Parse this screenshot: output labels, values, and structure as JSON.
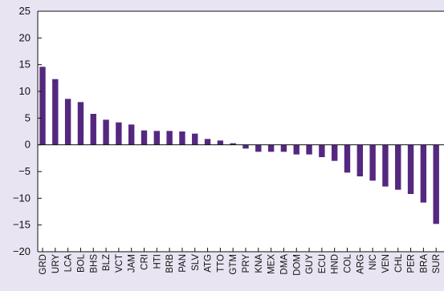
{
  "chart_data": {
    "type": "bar",
    "title": "",
    "xlabel": "",
    "ylabel": "",
    "ylim": [
      -20,
      25
    ],
    "yticks": [
      -20,
      -15,
      -10,
      -5,
      0,
      5,
      10,
      15,
      20,
      25
    ],
    "ytick_labels": [
      "−20",
      "−15",
      "−10",
      "−5",
      "0",
      "5",
      "10",
      "15",
      "20",
      "25"
    ],
    "grid": false,
    "legend": "none",
    "bar_color": "#55287f",
    "background_color": "#e8e4f1",
    "plot_background_color": "#ffffff",
    "categories": [
      "GRD",
      "URY",
      "LCA",
      "BOL",
      "BHS",
      "BLZ",
      "VCT",
      "JAM",
      "CRI",
      "HTI",
      "BRB",
      "PAN",
      "SLV",
      "ATG",
      "TTO",
      "GTM",
      "PRY",
      "KNA",
      "MEX",
      "DMA",
      "DOM",
      "GUY",
      "ECU",
      "HND",
      "COL",
      "ARG",
      "NIC",
      "VEN",
      "CHL",
      "PER",
      "BRA",
      "SUR"
    ],
    "values": [
      14.6,
      12.3,
      8.6,
      8.0,
      5.8,
      4.7,
      4.2,
      3.8,
      2.7,
      2.6,
      2.6,
      2.5,
      2.1,
      1.1,
      0.8,
      0.3,
      -0.7,
      -1.3,
      -1.3,
      -1.3,
      -1.8,
      -1.8,
      -2.3,
      -3.0,
      -5.2,
      -5.9,
      -6.7,
      -7.8,
      -8.4,
      -9.2,
      -10.8,
      -14.8
    ]
  }
}
